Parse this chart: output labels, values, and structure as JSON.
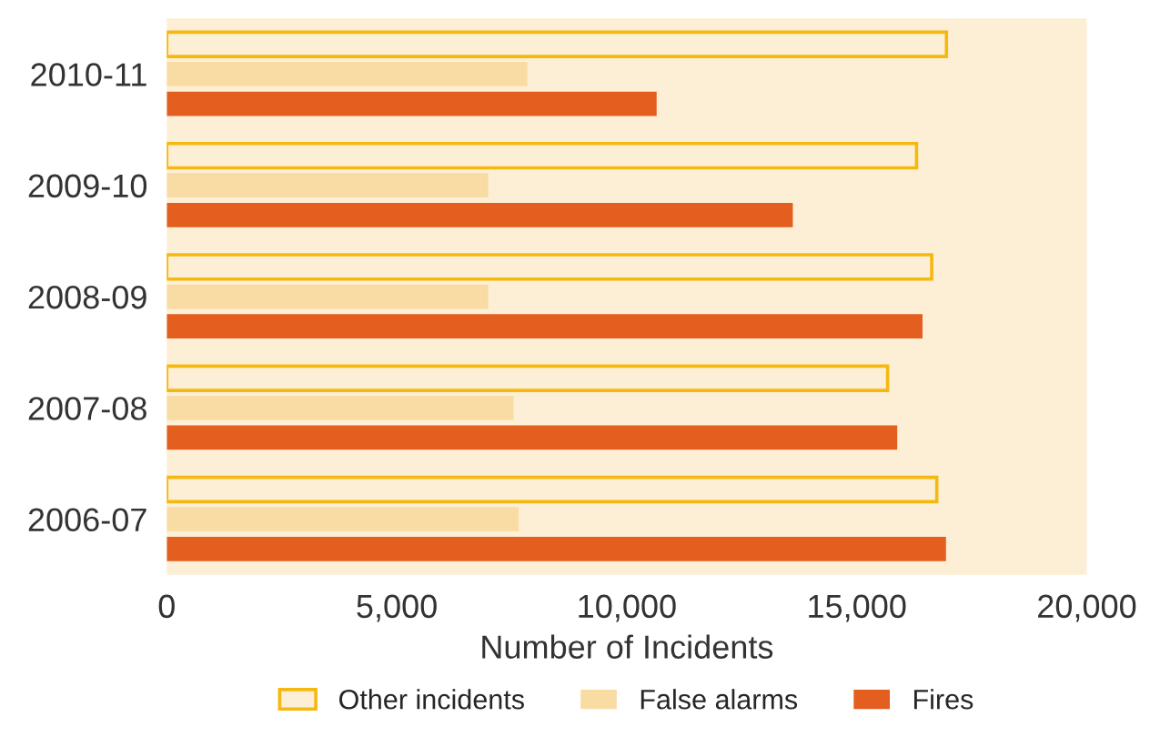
{
  "chart_data": {
    "type": "bar",
    "orientation": "horizontal",
    "xlabel": "Number of Incidents",
    "categories": [
      "2010-11",
      "2009-10",
      "2008-09",
      "2007-08",
      "2006-07"
    ],
    "series": [
      {
        "name": "Other incidents",
        "color": "#f5b80f",
        "values": [
          16950,
          16300,
          16630,
          15670,
          16740
        ]
      },
      {
        "name": "False alarms",
        "color": "#f9dca3",
        "values": [
          7840,
          6990,
          6990,
          7540,
          7650
        ]
      },
      {
        "name": "Fires",
        "color": "#e45e1f",
        "values": [
          10650,
          13610,
          16430,
          15880,
          16940
        ]
      }
    ],
    "xlim": [
      0,
      20000
    ],
    "xticks": [
      0,
      {
        "value": 5000,
        "label": "5,000"
      },
      {
        "value": 10000,
        "label": "10,000"
      },
      {
        "value": 15000,
        "label": "15,000"
      },
      {
        "value": 20000,
        "label": "20,000"
      }
    ],
    "grid": false,
    "legend": "bottom"
  }
}
